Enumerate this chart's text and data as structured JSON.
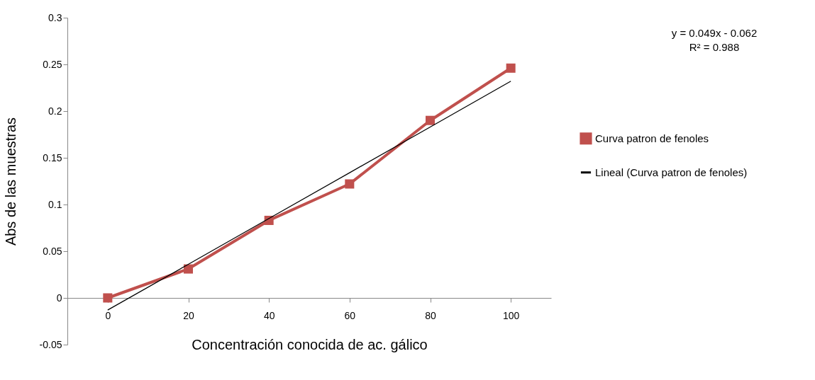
{
  "chart_data": {
    "type": "line",
    "xlabel": "Concentración conocida de ac. gálico",
    "ylabel": "Abs de las muestras",
    "categories": [
      "0",
      "20",
      "40",
      "60",
      "80",
      "100"
    ],
    "series": [
      {
        "name": "Curva patron de fenoles",
        "color": "#c0504d",
        "values": [
          0,
          0.031,
          0.083,
          0.122,
          0.19,
          0.246
        ],
        "marker": "square"
      },
      {
        "name": "Lineal (Curva patron de fenoles)",
        "color": "#000000",
        "values": [
          -0.013,
          0.036,
          0.085,
          0.134,
          0.183,
          0.232
        ],
        "marker": "none"
      }
    ],
    "ylim": [
      -0.05,
      0.3
    ],
    "yticks": [
      -0.05,
      0,
      0.05,
      0.1,
      0.15,
      0.2,
      0.25,
      0.3
    ],
    "grid": false,
    "legend": "right",
    "annotations": [
      "y = 0.049x - 0.062",
      "R² = 0.988"
    ]
  }
}
